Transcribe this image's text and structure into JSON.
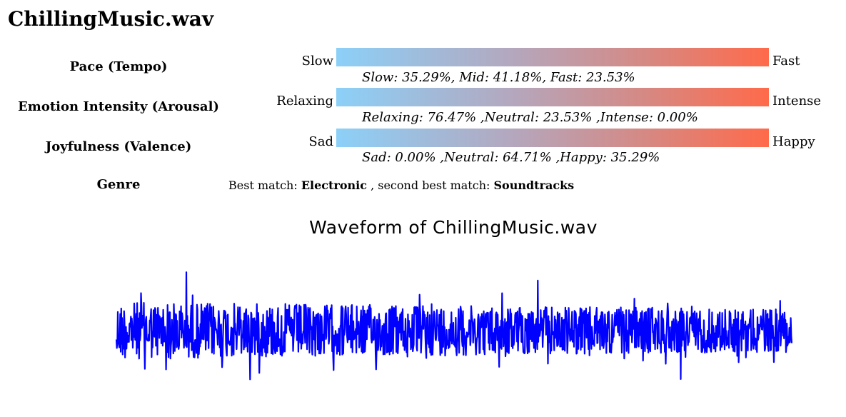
{
  "page": {
    "title": "ChillingMusic.wav"
  },
  "metrics": [
    {
      "label": "Pace (Tempo)",
      "left_label": "Slow",
      "right_label": "Fast",
      "breakdown": "Slow: 35.29%, Mid: 41.18%, Fast: 23.53%"
    },
    {
      "label": "Emotion Intensity (Arousal)",
      "left_label": "Relaxing",
      "right_label": "Intense",
      "breakdown": "Relaxing: 76.47% ,Neutral: 23.53% ,Intense: 0.00%"
    },
    {
      "label": "Joyfulness (Valence)",
      "left_label": "Sad",
      "right_label": "Happy",
      "breakdown": "Sad: 0.00% ,Neutral: 64.71% ,Happy: 35.29%"
    }
  ],
  "genre": {
    "label": "Genre",
    "prefix": "Best match:",
    "best": "Electronic",
    "middle": ", second best match:",
    "second": "Soundtracks"
  },
  "colors": {
    "gradient_start": "#8cd0f8",
    "gradient_end": "#ff6a4a",
    "waveform": "#0000ff"
  },
  "chart_data": {
    "type": "line",
    "title": "Waveform of ChillingMusic.wav",
    "xlabel": "",
    "ylabel": "",
    "grid": false,
    "axes_visible": false,
    "series": [
      {
        "color": "#0000ff",
        "envelope_top_peaks_note": "audio waveform; amplitude is roughly stationary across the whole clip"
      }
    ]
  }
}
